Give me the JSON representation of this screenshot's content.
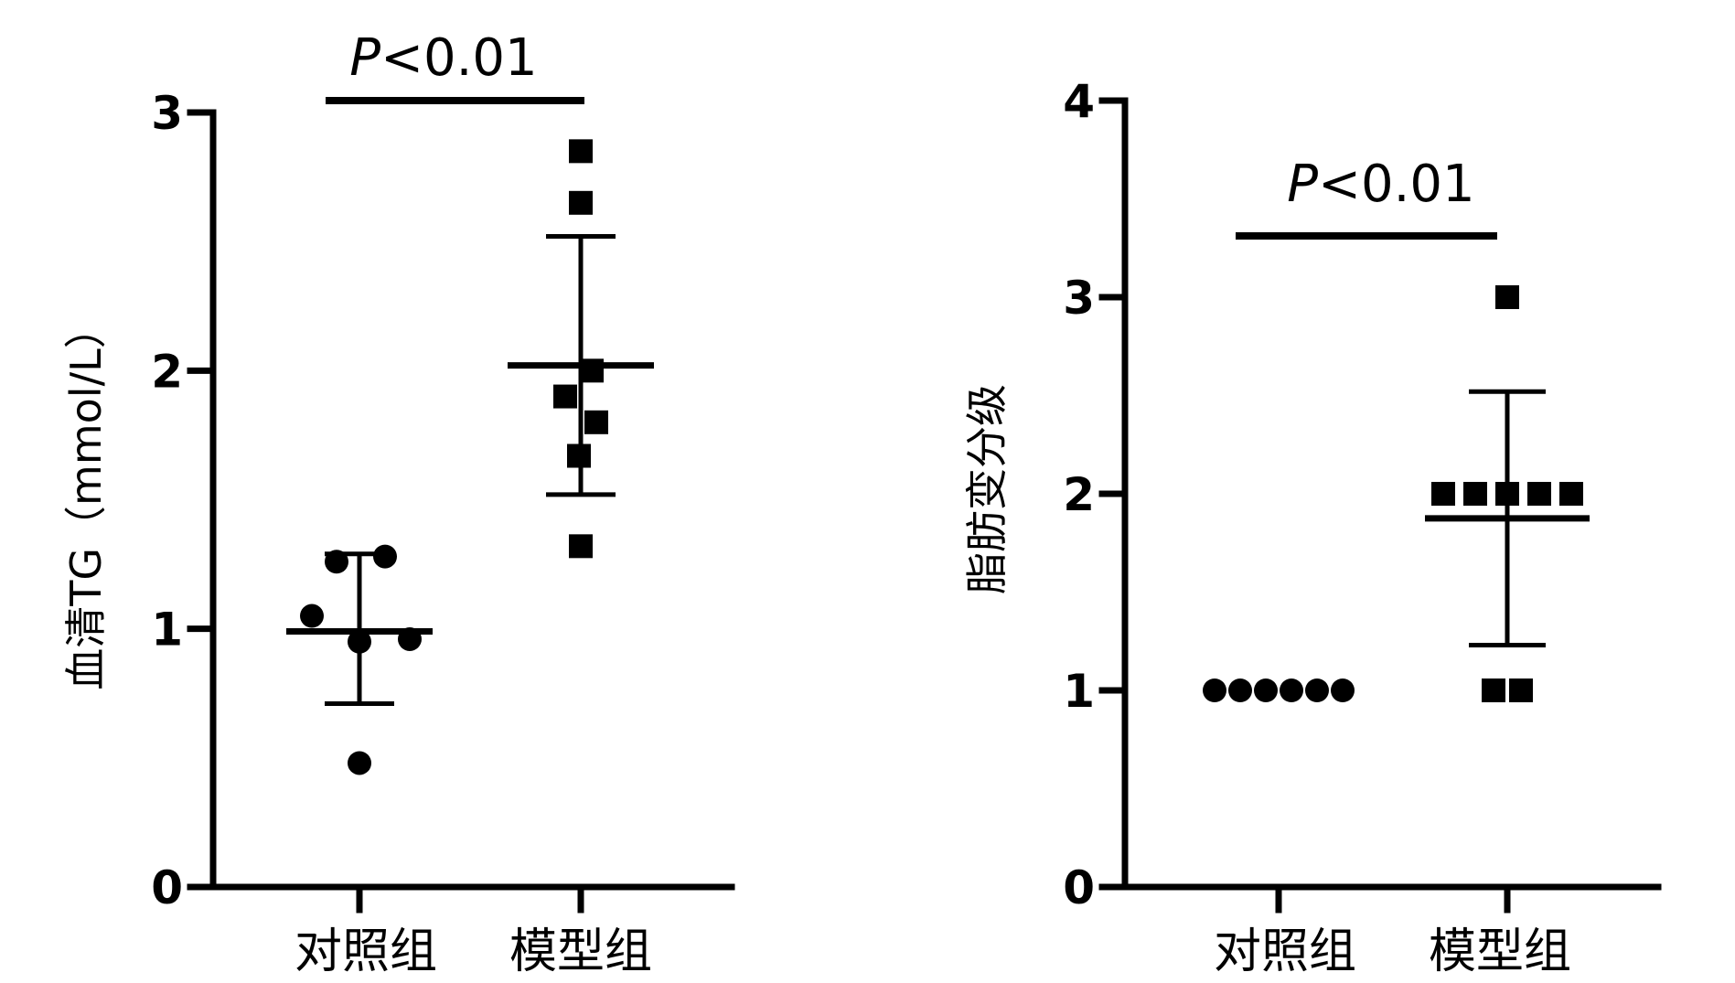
{
  "chart_data": [
    {
      "type": "scatter",
      "ylabel": "血清TG（mmol/L）",
      "ylim": [
        0,
        3
      ],
      "yticks": [
        0,
        1,
        2,
        3
      ],
      "categories": [
        "对照组",
        "模型组"
      ],
      "significance": {
        "p_prefix": "P",
        "p_rest": "<0.01"
      },
      "series": [
        {
          "marker": "circle",
          "mean": 0.99,
          "sd_low": 0.71,
          "sd_high": 1.29,
          "points": [
            0.48,
            1.05,
            1.26,
            1.28,
            0.95,
            0.96
          ]
        },
        {
          "marker": "square",
          "mean": 2.02,
          "sd_low": 1.52,
          "sd_high": 2.52,
          "points": [
            2.85,
            2.65,
            2.0,
            1.9,
            1.8,
            1.67,
            1.32
          ]
        }
      ]
    },
    {
      "type": "scatter",
      "ylabel": "脂肪变分级",
      "ylim": [
        0,
        4
      ],
      "yticks": [
        0,
        1,
        2,
        3,
        4
      ],
      "categories": [
        "对照组",
        "模型组"
      ],
      "significance": {
        "p_prefix": "P",
        "p_rest": "<0.01"
      },
      "series": [
        {
          "marker": "circle",
          "mean": 1.0,
          "sd_low": 1.0,
          "sd_high": 1.0,
          "points": [
            1,
            1,
            1,
            1,
            1,
            1
          ]
        },
        {
          "marker": "square",
          "mean": 1.875,
          "sd_low": 1.23,
          "sd_high": 2.52,
          "points": [
            3,
            2,
            2,
            2,
            2,
            2,
            1,
            1
          ]
        }
      ]
    }
  ]
}
